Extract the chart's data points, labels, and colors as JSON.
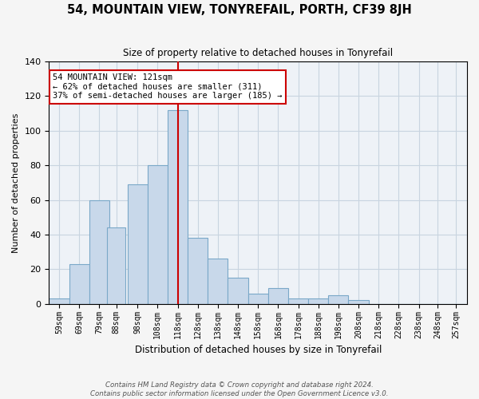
{
  "title": "54, MOUNTAIN VIEW, TONYREFAIL, PORTH, CF39 8JH",
  "subtitle": "Size of property relative to detached houses in Tonyrefail",
  "xlabel": "Distribution of detached houses by size in Tonyrefail",
  "ylabel": "Number of detached properties",
  "bar_labels": [
    "59sqm",
    "69sqm",
    "79sqm",
    "88sqm",
    "98sqm",
    "108sqm",
    "118sqm",
    "128sqm",
    "138sqm",
    "148sqm",
    "158sqm",
    "168sqm",
    "178sqm",
    "188sqm",
    "198sqm",
    "208sqm",
    "218sqm",
    "228sqm",
    "238sqm",
    "248sqm",
    "257sqm"
  ],
  "bar_values": [
    3,
    23,
    60,
    44,
    69,
    80,
    112,
    38,
    26,
    15,
    6,
    9,
    3,
    3,
    5,
    2,
    0,
    0,
    0,
    0,
    0
  ],
  "bar_left_edges": [
    54,
    64,
    74,
    83,
    93,
    103,
    113,
    123,
    133,
    143,
    153,
    163,
    173,
    183,
    193,
    203,
    213,
    223,
    233,
    243,
    252
  ],
  "bar_widths": [
    10,
    10,
    10,
    9,
    10,
    10,
    10,
    10,
    10,
    10,
    10,
    10,
    10,
    10,
    10,
    10,
    10,
    10,
    10,
    9,
    9
  ],
  "bar_color": "#c8d8ea",
  "bar_edge_color": "#7aa8c8",
  "property_line_x": 118,
  "property_line_color": "#cc0000",
  "annotation_line1": "54 MOUNTAIN VIEW: 121sqm",
  "annotation_line2": "← 62% of detached houses are smaller (311)",
  "annotation_line3": "37% of semi-detached houses are larger (185) →",
  "annotation_box_color": "#ffffff",
  "annotation_box_edge": "#cc0000",
  "ylim": [
    0,
    140
  ],
  "yticks": [
    0,
    20,
    40,
    60,
    80,
    100,
    120,
    140
  ],
  "xlim_left": 54,
  "xlim_right": 262,
  "grid_color": "#c8d4e0",
  "bg_color": "#eef2f7",
  "footer_line1": "Contains HM Land Registry data © Crown copyright and database right 2024.",
  "footer_line2": "Contains public sector information licensed under the Open Government Licence v3.0."
}
